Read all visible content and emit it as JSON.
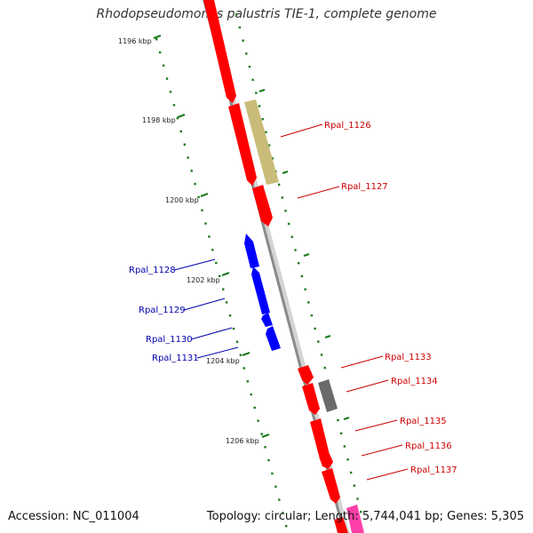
{
  "title": "Rhodopseudomonas palustris TIE-1, complete genome",
  "accession": "Accession: NC_011004",
  "topology": "Topology: circular; Length: 5,744,041 bp; Genes: 5,305",
  "colors": {
    "forward_gene": "#ff0000",
    "reverse_gene": "#0000ff",
    "other_gene": "#c8bc78",
    "dark_gene": "#6a6a6a",
    "pink_gene": "#ff3fa8",
    "backbone": "#8a8a8a",
    "tick": "#1a7a1a",
    "forward_label": "#cc0000",
    "reverse_label": "#0000aa"
  },
  "kbp_ticks": [
    "1196 kbp",
    "1198 kbp",
    "1200 kbp",
    "1202 kbp",
    "1204 kbp",
    "1206 kbp"
  ],
  "gene_labels": {
    "forward": [
      "Rpal_1126",
      "Rpal_1127",
      "Rpal_1133",
      "Rpal_1134",
      "Rpal_1135",
      "Rpal_1136",
      "Rpal_1137"
    ],
    "reverse": [
      "Rpal_1128",
      "Rpal_1129",
      "Rpal_1130",
      "Rpal_1131"
    ]
  }
}
